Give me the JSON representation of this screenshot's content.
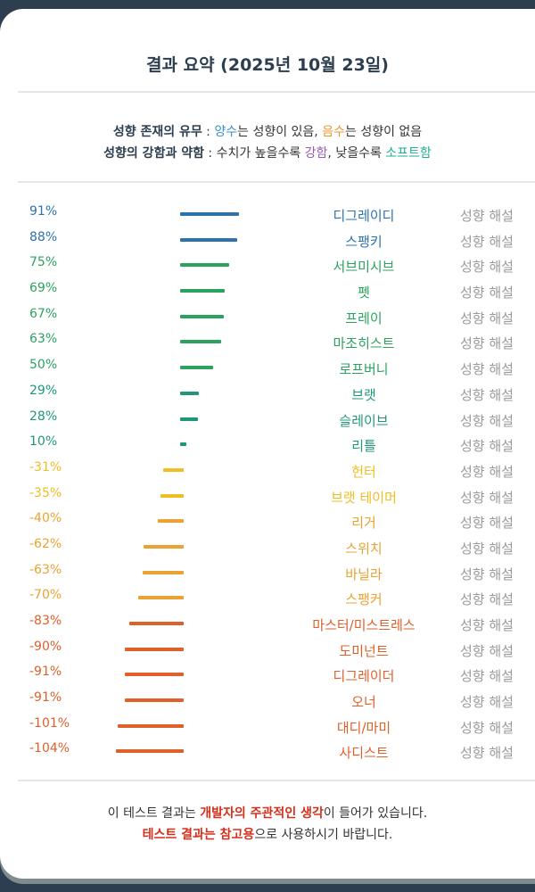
{
  "title": "결과 요약 (2025년 10월 23일)",
  "legend": {
    "line1": {
      "label": "성향 존재의 유무",
      "sep": " : ",
      "positive": "양수",
      "t1": "는 성향이 있음, ",
      "negative": "음수",
      "t2": "는 성향이 없음"
    },
    "line2": {
      "label": "성향의 강함과 약함",
      "sep": " : ",
      "t1": "수치가 높을수록 ",
      "strong": "강함",
      "t2": ", 낮을수록 ",
      "soft": "소프트함"
    }
  },
  "colors": {
    "positive": "#3a8fc9",
    "negative": "#e9952c",
    "strong": "#9b59b6",
    "soft": "#1fae8f"
  },
  "desc_label": "성향 해설",
  "rows": [
    {
      "pct": "91%",
      "value": 91,
      "name": "디그레이디",
      "color": "#2e72ad"
    },
    {
      "pct": "88%",
      "value": 88,
      "name": "스팽키",
      "color": "#2e72ad"
    },
    {
      "pct": "75%",
      "value": 75,
      "name": "서브미시브",
      "color": "#2aa35e"
    },
    {
      "pct": "69%",
      "value": 69,
      "name": "펫",
      "color": "#2aa35e"
    },
    {
      "pct": "67%",
      "value": 67,
      "name": "프레이",
      "color": "#2aa35e"
    },
    {
      "pct": "63%",
      "value": 63,
      "name": "마조히스트",
      "color": "#2aa35e"
    },
    {
      "pct": "50%",
      "value": 50,
      "name": "로프버니",
      "color": "#2aa35e"
    },
    {
      "pct": "29%",
      "value": 29,
      "name": "브랫",
      "color": "#1f987a"
    },
    {
      "pct": "28%",
      "value": 28,
      "name": "슬레이브",
      "color": "#1f987a"
    },
    {
      "pct": "10%",
      "value": 10,
      "name": "리틀",
      "color": "#1f987a"
    },
    {
      "pct": "-31%",
      "value": -31,
      "name": "헌터",
      "color": "#f0bd22"
    },
    {
      "pct": "-35%",
      "value": -35,
      "name": "브랫 테이머",
      "color": "#f0bd22"
    },
    {
      "pct": "-40%",
      "value": -40,
      "name": "리거",
      "color": "#eba232"
    },
    {
      "pct": "-62%",
      "value": -62,
      "name": "스위치",
      "color": "#eba232"
    },
    {
      "pct": "-63%",
      "value": -63,
      "name": "바닐라",
      "color": "#eba232"
    },
    {
      "pct": "-70%",
      "value": -70,
      "name": "스팽커",
      "color": "#eba232"
    },
    {
      "pct": "-83%",
      "value": -83,
      "name": "마스터/미스트레스",
      "color": "#e0602a"
    },
    {
      "pct": "-90%",
      "value": -90,
      "name": "도미넌트",
      "color": "#e0602a"
    },
    {
      "pct": "-91%",
      "value": -91,
      "name": "디그레이더",
      "color": "#e0602a"
    },
    {
      "pct": "-91%",
      "value": -91,
      "name": "오너",
      "color": "#e0602a"
    },
    {
      "pct": "-101%",
      "value": -101,
      "name": "대디/마미",
      "color": "#e0602a"
    },
    {
      "pct": "-104%",
      "value": -104,
      "name": "사디스트",
      "color": "#e0602a"
    }
  ],
  "footer": {
    "l1a": "이 테스트 결과는 ",
    "l1b": "개발자의 주관적인 생각",
    "l1c": "이 들어가 있습니다.",
    "l2a": "테스트 결과는 참고용",
    "l2b": "으로 사용하시기 바랍니다."
  }
}
